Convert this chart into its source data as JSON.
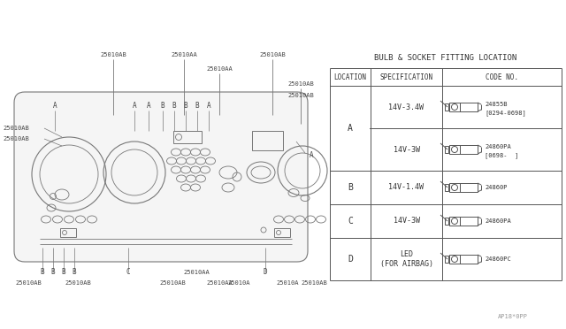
{
  "bg_color": "white",
  "title": "BULB & SOCKET FITTING LOCATION",
  "table_header": [
    "LOCATION",
    "SPECIFICATION",
    "CODE NO."
  ],
  "table_rows": [
    [
      "A",
      "14V-3.4W",
      "24855B",
      "[0294-0698]"
    ],
    [
      "A",
      "14V-3W",
      "24860PA",
      "[0698-  ]"
    ],
    [
      "B",
      "14V-1.4W",
      "24860P",
      ""
    ],
    [
      "C",
      "14V-3W",
      "24860PA",
      ""
    ],
    [
      "D",
      "LED\n(FOR AIRBAG)",
      "24860PC",
      ""
    ]
  ],
  "watermark": "AP18*0PP",
  "gc": "#777777",
  "tc": "#444444",
  "lw_g": 0.7
}
